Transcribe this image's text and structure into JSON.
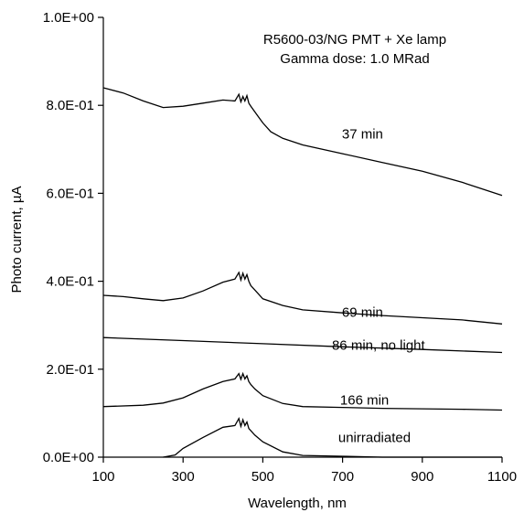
{
  "chart_data": {
    "type": "line",
    "title": "",
    "annotation_lines": [
      "R5600-03/NG PMT + Xe lamp",
      "Gamma dose: 1.0 MRad"
    ],
    "xlabel": "Wavelength, nm",
    "ylabel": "Photo current, µA",
    "xlim": [
      100,
      1100
    ],
    "ylim": [
      0,
      1.0
    ],
    "x_ticks": [
      100,
      300,
      500,
      700,
      900,
      1100
    ],
    "y_ticks": [
      0.0,
      0.2,
      0.4,
      0.6,
      0.8,
      1.0
    ],
    "y_tick_labels": [
      "0.0E+00",
      "2.0E-01",
      "4.0E-01",
      "6.0E-01",
      "8.0E-01",
      "1.0E+00"
    ],
    "grid": false,
    "legend": "none",
    "series": [
      {
        "label": "37 min",
        "label_at": [
          750,
          0.735
        ],
        "points": [
          [
            100,
            0.84
          ],
          [
            150,
            0.828
          ],
          [
            200,
            0.81
          ],
          [
            250,
            0.795
          ],
          [
            300,
            0.798
          ],
          [
            350,
            0.805
          ],
          [
            400,
            0.812
          ],
          [
            430,
            0.81
          ],
          [
            440,
            0.825
          ],
          [
            445,
            0.808
          ],
          [
            450,
            0.82
          ],
          [
            455,
            0.81
          ],
          [
            460,
            0.822
          ],
          [
            465,
            0.805
          ],
          [
            470,
            0.798
          ],
          [
            480,
            0.785
          ],
          [
            500,
            0.76
          ],
          [
            520,
            0.74
          ],
          [
            550,
            0.725
          ],
          [
            600,
            0.71
          ],
          [
            700,
            0.69
          ],
          [
            800,
            0.67
          ],
          [
            900,
            0.65
          ],
          [
            1000,
            0.625
          ],
          [
            1100,
            0.595
          ]
        ]
      },
      {
        "label": "69 min",
        "label_at": [
          750,
          0.33
        ],
        "points": [
          [
            100,
            0.368
          ],
          [
            150,
            0.365
          ],
          [
            200,
            0.36
          ],
          [
            250,
            0.356
          ],
          [
            300,
            0.362
          ],
          [
            350,
            0.378
          ],
          [
            400,
            0.398
          ],
          [
            430,
            0.405
          ],
          [
            440,
            0.42
          ],
          [
            445,
            0.403
          ],
          [
            450,
            0.418
          ],
          [
            455,
            0.405
          ],
          [
            460,
            0.415
          ],
          [
            465,
            0.4
          ],
          [
            470,
            0.39
          ],
          [
            480,
            0.38
          ],
          [
            500,
            0.36
          ],
          [
            550,
            0.345
          ],
          [
            600,
            0.335
          ],
          [
            700,
            0.328
          ],
          [
            800,
            0.322
          ],
          [
            900,
            0.317
          ],
          [
            1000,
            0.312
          ],
          [
            1100,
            0.303
          ]
        ]
      },
      {
        "label": "86 min, no light",
        "label_at": [
          790,
          0.255
        ],
        "points": [
          [
            100,
            0.272
          ],
          [
            300,
            0.265
          ],
          [
            500,
            0.258
          ],
          [
            700,
            0.251
          ],
          [
            900,
            0.245
          ],
          [
            1100,
            0.238
          ]
        ]
      },
      {
        "label": "166 min",
        "label_at": [
          755,
          0.13
        ],
        "points": [
          [
            100,
            0.115
          ],
          [
            200,
            0.118
          ],
          [
            250,
            0.123
          ],
          [
            300,
            0.135
          ],
          [
            350,
            0.155
          ],
          [
            400,
            0.172
          ],
          [
            430,
            0.178
          ],
          [
            440,
            0.19
          ],
          [
            445,
            0.177
          ],
          [
            450,
            0.19
          ],
          [
            455,
            0.178
          ],
          [
            460,
            0.185
          ],
          [
            465,
            0.172
          ],
          [
            470,
            0.165
          ],
          [
            480,
            0.155
          ],
          [
            500,
            0.14
          ],
          [
            550,
            0.122
          ],
          [
            600,
            0.115
          ],
          [
            700,
            0.113
          ],
          [
            800,
            0.111
          ],
          [
            900,
            0.11
          ],
          [
            1000,
            0.109
          ],
          [
            1100,
            0.107
          ]
        ]
      },
      {
        "label": "unirradiated",
        "label_at": [
          780,
          0.045
        ],
        "points": [
          [
            250,
            0.0
          ],
          [
            280,
            0.005
          ],
          [
            300,
            0.02
          ],
          [
            350,
            0.045
          ],
          [
            400,
            0.068
          ],
          [
            430,
            0.072
          ],
          [
            440,
            0.088
          ],
          [
            445,
            0.07
          ],
          [
            450,
            0.085
          ],
          [
            455,
            0.072
          ],
          [
            460,
            0.08
          ],
          [
            465,
            0.065
          ],
          [
            470,
            0.06
          ],
          [
            480,
            0.05
          ],
          [
            500,
            0.035
          ],
          [
            550,
            0.012
          ],
          [
            600,
            0.004
          ],
          [
            700,
            0.002
          ],
          [
            800,
            0.0
          ],
          [
            1100,
            0.0
          ]
        ]
      }
    ]
  }
}
